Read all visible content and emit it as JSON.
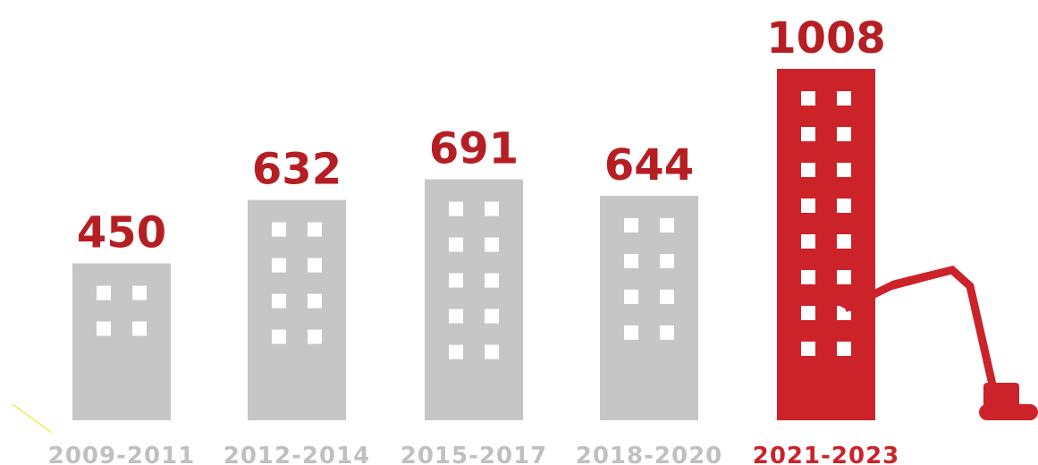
{
  "chart_data": {
    "type": "bar",
    "categories": [
      "2009-2011",
      "2012-2014",
      "2015-2017",
      "2018-2020",
      "2021-2023"
    ],
    "values": [
      450,
      632,
      691,
      644,
      1008
    ],
    "colors": [
      "#c6c6c6",
      "#c6c6c6",
      "#c6c6c6",
      "#c6c6c6",
      "#cc2229"
    ],
    "value_label_color": "#b51f24"
  }
}
